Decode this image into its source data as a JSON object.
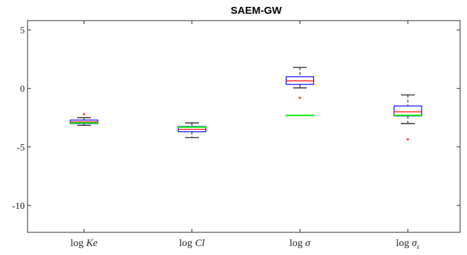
{
  "chart_data": {
    "type": "box",
    "title": "SAEM-GW",
    "xlabel": "",
    "ylabel": "",
    "categories": [
      "log Ke",
      "log Cl",
      "log σ",
      "log σ_ε"
    ],
    "category_labels": [
      {
        "prefix": "log ",
        "main": "Ke",
        "sub": ""
      },
      {
        "prefix": "log ",
        "main": "Cl",
        "sub": ""
      },
      {
        "prefix": "log ",
        "main": "σ",
        "sub": ""
      },
      {
        "prefix": "log ",
        "main": "σ",
        "sub": "ε"
      }
    ],
    "ylim": [
      -12.3,
      5.8
    ],
    "yticks": [
      5,
      0,
      -5,
      -10
    ],
    "ytick_labels": [
      "5",
      "0",
      "-5",
      "-10"
    ],
    "grid": false,
    "boxes": [
      {
        "whisker_low": -3.15,
        "q1": -3.0,
        "median": -2.85,
        "q3": -2.7,
        "whisker_high": -2.5,
        "outliers": [
          -2.2
        ],
        "reference": -2.95
      },
      {
        "whisker_low": -4.2,
        "q1": -3.7,
        "median": -3.5,
        "q3": -3.25,
        "whisker_high": -2.95,
        "outliers": [],
        "reference": -3.3
      },
      {
        "whisker_low": 0.05,
        "q1": 0.35,
        "median": 0.65,
        "q3": 1.0,
        "whisker_high": 1.8,
        "outliers": [
          -0.8
        ],
        "reference": -2.3
      },
      {
        "whisker_low": -3.0,
        "q1": -2.35,
        "median": -2.0,
        "q3": -1.5,
        "whisker_high": -0.55,
        "outliers": [
          -4.35
        ],
        "reference": -2.3
      }
    ],
    "colors": {
      "box": "#0000ff",
      "median": "#ff0000",
      "whisker": "#000000",
      "outlier": "#ff0000",
      "reference": "#00ee00",
      "axis": "#262626"
    }
  }
}
